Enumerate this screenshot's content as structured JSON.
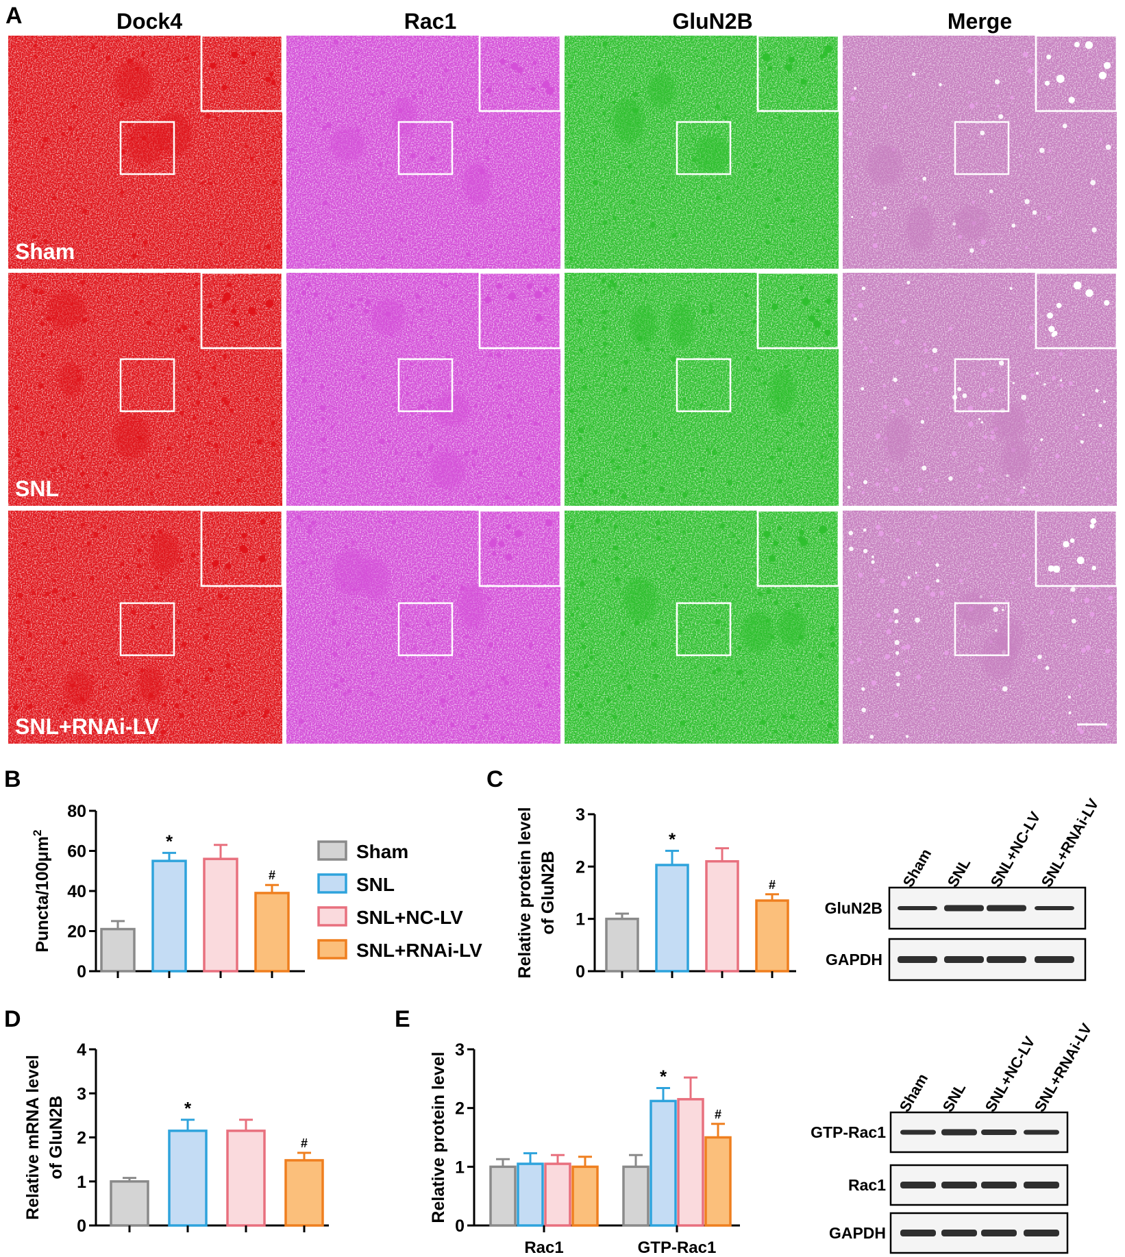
{
  "colors": {
    "sham": "#8a8a8a",
    "sham_fill": "#d4d4d4",
    "snl": "#2ea3dc",
    "snl_fill": "#c4dcf4",
    "nc": "#e8707e",
    "nc_fill": "#fadadd",
    "rnai": "#ef7f1f",
    "rnai_fill": "#fbbf7b",
    "red": "#e0141a",
    "magenta": "#d44fd8",
    "green": "#2fc02f",
    "merge": "#c67fbf"
  },
  "panelA": {
    "label": "A",
    "columns": [
      "Dock4",
      "Rac1",
      "GluN2B",
      "Merge"
    ],
    "rows": [
      "Sham",
      "SNL",
      "SNL+RNAi-LV"
    ]
  },
  "chart_data": [
    {
      "panel": "B",
      "type": "bar",
      "categories": [
        "Sham",
        "SNL",
        "SNL+NC-LV",
        "SNL+RNAi-LV"
      ],
      "values": [
        21,
        55,
        56,
        39
      ],
      "errors": [
        4,
        4,
        7,
        4
      ],
      "marks": [
        "",
        "*",
        "",
        "#"
      ],
      "ylabel": "Puncta/100μm",
      "ylabel_sup": "2",
      "ylim": [
        0,
        80
      ],
      "yticks": [
        0,
        20,
        40,
        60,
        80
      ],
      "legend": [
        "Sham",
        "SNL",
        "SNL+NC-LV",
        "SNL+RNAi-LV"
      ]
    },
    {
      "panel": "C",
      "type": "bar",
      "categories": [
        "Sham",
        "SNL",
        "SNL+NC-LV",
        "SNL+RNAi-LV"
      ],
      "values": [
        1.0,
        2.03,
        2.1,
        1.35
      ],
      "errors": [
        0.1,
        0.27,
        0.25,
        0.12
      ],
      "marks": [
        "",
        "*",
        "",
        "#"
      ],
      "ylabel": [
        "Relative protein level",
        "of GluN2B"
      ],
      "ylim": [
        0,
        3
      ],
      "yticks": [
        0,
        1,
        2,
        3
      ]
    },
    {
      "panel": "D",
      "type": "bar",
      "categories": [
        "Sham",
        "SNL",
        "SNL+NC-LV",
        "SNL+RNAi-LV"
      ],
      "values": [
        1.0,
        2.15,
        2.15,
        1.48
      ],
      "errors": [
        0.08,
        0.25,
        0.25,
        0.17
      ],
      "marks": [
        "",
        "*",
        "",
        "#"
      ],
      "ylabel": [
        "Relative mRNA level",
        "of GluN2B"
      ],
      "ylim": [
        0,
        4
      ],
      "yticks": [
        0,
        1,
        2,
        3,
        4
      ]
    },
    {
      "panel": "E",
      "type": "bar",
      "categories": [
        "Rac1",
        "GTP-Rac1"
      ],
      "series": [
        {
          "name": "Sham",
          "values": [
            1.0,
            1.0
          ],
          "errors": [
            0.13,
            0.2
          ]
        },
        {
          "name": "SNL",
          "values": [
            1.05,
            2.12
          ],
          "errors": [
            0.18,
            0.22
          ]
        },
        {
          "name": "SNL+NC-LV",
          "values": [
            1.05,
            2.15
          ],
          "errors": [
            0.15,
            0.37
          ]
        },
        {
          "name": "SNL+RNAi-LV",
          "values": [
            1.0,
            1.5
          ],
          "errors": [
            0.17,
            0.23
          ]
        }
      ],
      "marks": {
        "SNL": [
          "",
          "*"
        ],
        "SNL+RNAi-LV": [
          "",
          "#"
        ]
      },
      "ylabel": "Relative protein level",
      "ylim": [
        0,
        3
      ],
      "yticks": [
        0,
        1,
        2,
        3
      ]
    }
  ],
  "blotC": {
    "lanes": [
      "Sham",
      "SNL",
      "SNL+NC-LV",
      "SNL+RNAi-LV"
    ],
    "rows": [
      "GluN2B",
      "GAPDH"
    ]
  },
  "blotE": {
    "lanes": [
      "Sham",
      "SNL",
      "SNL+NC-LV",
      "SNL+RNAi-LV"
    ],
    "rows": [
      "GTP-Rac1",
      "Rac1",
      "GAPDH"
    ]
  }
}
